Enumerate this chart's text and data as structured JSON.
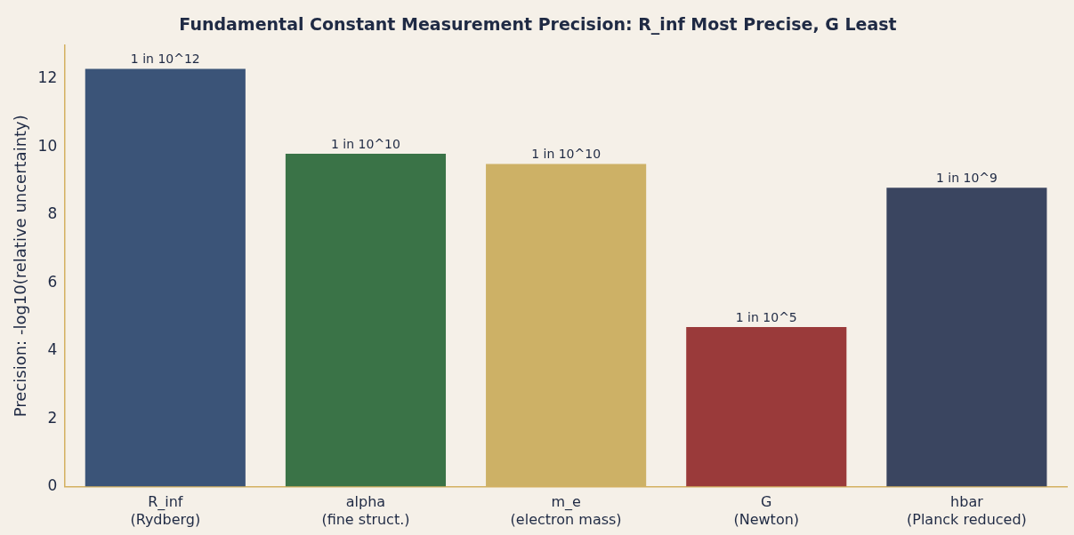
{
  "chart_data": {
    "type": "bar",
    "title": "Fundamental Constant Measurement Precision: R_inf Most Precise, G Least",
    "ylabel": "Precision: -log10(relative uncertainty)",
    "categories": [
      "R_inf\n(Rydberg)",
      "alpha\n(fine struct.)",
      "m_e\n(electron mass)",
      "G\n(Newton)",
      "hbar\n(Planck reduced)"
    ],
    "values": [
      12.3,
      9.8,
      9.5,
      4.7,
      8.8
    ],
    "colors": [
      "#3b5478",
      "#3a7347",
      "#cdb166",
      "#9a3a3a",
      "#3a4560"
    ],
    "value_labels": [
      "1 in 10^12",
      "1 in 10^10",
      "1 in 10^10",
      "1 in 10^5",
      "1 in 10^9"
    ],
    "ylim": [
      0,
      13
    ],
    "yticks": [
      0,
      2,
      4,
      6,
      8,
      10,
      12
    ],
    "grid": false,
    "legend": false
  }
}
